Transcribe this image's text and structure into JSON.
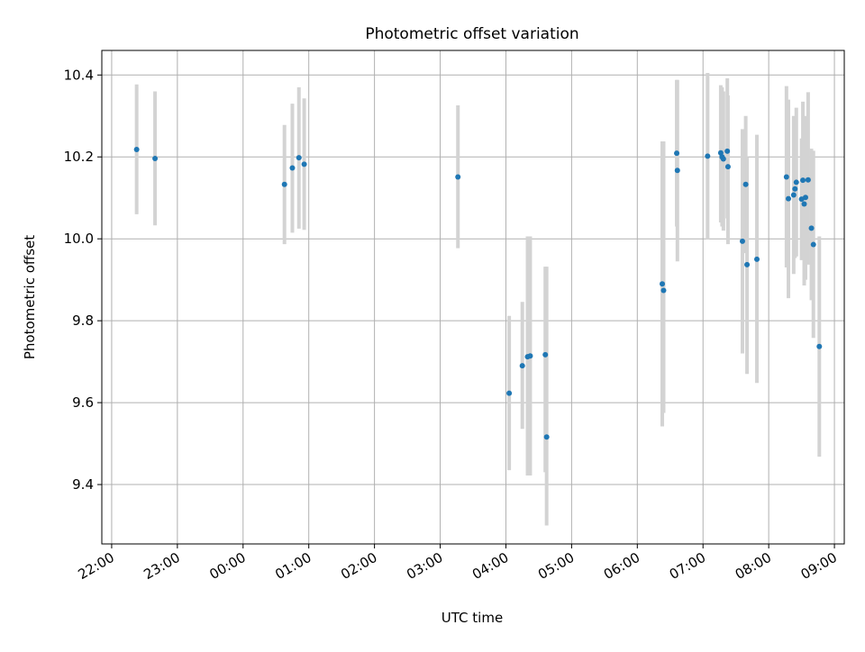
{
  "chart_data": {
    "type": "scatter",
    "title": "Photometric offset variation",
    "xlabel": "UTC time",
    "ylabel": "Photometric offset",
    "x_unit": "hours since 22:00 UTC",
    "xlim": [
      -0.15,
      11.15
    ],
    "ylim": [
      9.255,
      10.46
    ],
    "xticks": [
      {
        "label": "22:00",
        "value": 0
      },
      {
        "label": "23:00",
        "value": 1
      },
      {
        "label": "00:00",
        "value": 2
      },
      {
        "label": "01:00",
        "value": 3
      },
      {
        "label": "02:00",
        "value": 4
      },
      {
        "label": "03:00",
        "value": 5
      },
      {
        "label": "04:00",
        "value": 6
      },
      {
        "label": "05:00",
        "value": 7
      },
      {
        "label": "06:00",
        "value": 8
      },
      {
        "label": "07:00",
        "value": 9
      },
      {
        "label": "08:00",
        "value": 10
      },
      {
        "label": "09:00",
        "value": 11
      }
    ],
    "yticks": [
      {
        "label": "9.4",
        "value": 9.4
      },
      {
        "label": "9.6",
        "value": 9.6
      },
      {
        "label": "9.8",
        "value": 9.8
      },
      {
        "label": "10.0",
        "value": 10.0
      },
      {
        "label": "10.2",
        "value": 10.2
      },
      {
        "label": "10.4",
        "value": 10.4
      }
    ],
    "grid": true,
    "colors": {
      "points": "#1f77b4",
      "errorbars": "#d3d3d3",
      "grid": "#b0b0b0"
    },
    "series": [
      {
        "points": [
          {
            "x": 0.38,
            "y": 10.218,
            "lo": 10.06,
            "hi": 10.377
          },
          {
            "x": 0.66,
            "y": 10.196,
            "lo": 10.033,
            "hi": 10.36
          },
          {
            "x": 2.63,
            "y": 10.133,
            "lo": 9.987,
            "hi": 10.278
          },
          {
            "x": 2.75,
            "y": 10.173,
            "lo": 10.015,
            "hi": 10.33
          },
          {
            "x": 2.85,
            "y": 10.198,
            "lo": 10.025,
            "hi": 10.37
          },
          {
            "x": 2.93,
            "y": 10.182,
            "lo": 10.022,
            "hi": 10.343
          },
          {
            "x": 5.27,
            "y": 10.151,
            "lo": 9.977,
            "hi": 10.326
          },
          {
            "x": 6.05,
            "y": 9.623,
            "lo": 9.435,
            "hi": 9.812
          },
          {
            "x": 6.25,
            "y": 9.69,
            "lo": 9.536,
            "hi": 9.846
          },
          {
            "x": 6.33,
            "y": 9.712,
            "lo": 9.422,
            "hi": 10.006
          },
          {
            "x": 6.37,
            "y": 9.714,
            "lo": 9.422,
            "hi": 10.006
          },
          {
            "x": 6.6,
            "y": 9.717,
            "lo": 9.43,
            "hi": 9.932
          },
          {
            "x": 6.62,
            "y": 9.516,
            "lo": 9.3,
            "hi": 9.932
          },
          {
            "x": 8.38,
            "y": 9.89,
            "lo": 9.542,
            "hi": 10.238
          },
          {
            "x": 8.4,
            "y": 9.874,
            "lo": 9.575,
            "hi": 10.238
          },
          {
            "x": 8.6,
            "y": 10.209,
            "lo": 10.03,
            "hi": 10.388
          },
          {
            "x": 8.61,
            "y": 10.167,
            "lo": 9.945,
            "hi": 10.388
          },
          {
            "x": 9.07,
            "y": 10.202,
            "lo": 9.998,
            "hi": 10.405
          },
          {
            "x": 9.27,
            "y": 10.21,
            "lo": 10.04,
            "hi": 10.375
          },
          {
            "x": 9.29,
            "y": 10.2,
            "lo": 10.03,
            "hi": 10.37
          },
          {
            "x": 9.31,
            "y": 10.195,
            "lo": 10.02,
            "hi": 10.36
          },
          {
            "x": 9.37,
            "y": 10.214,
            "lo": 10.05,
            "hi": 10.392
          },
          {
            "x": 9.38,
            "y": 10.176,
            "lo": 9.987,
            "hi": 10.35
          },
          {
            "x": 9.6,
            "y": 9.994,
            "lo": 9.72,
            "hi": 10.268
          },
          {
            "x": 9.65,
            "y": 10.133,
            "lo": 9.965,
            "hi": 10.3
          },
          {
            "x": 9.67,
            "y": 9.937,
            "lo": 9.67,
            "hi": 10.2
          },
          {
            "x": 9.82,
            "y": 9.95,
            "lo": 9.648,
            "hi": 10.254
          },
          {
            "x": 10.27,
            "y": 10.151,
            "lo": 9.93,
            "hi": 10.373
          },
          {
            "x": 10.3,
            "y": 10.098,
            "lo": 9.855,
            "hi": 10.34
          },
          {
            "x": 10.38,
            "y": 10.107,
            "lo": 9.914,
            "hi": 10.3
          },
          {
            "x": 10.4,
            "y": 10.122,
            "lo": 9.953,
            "hi": 10.29
          },
          {
            "x": 10.42,
            "y": 10.138,
            "lo": 9.957,
            "hi": 10.32
          },
          {
            "x": 10.5,
            "y": 10.097,
            "lo": 9.948,
            "hi": 10.245
          },
          {
            "x": 10.52,
            "y": 10.143,
            "lo": 9.96,
            "hi": 10.335
          },
          {
            "x": 10.54,
            "y": 10.085,
            "lo": 9.886,
            "hi": 10.284
          },
          {
            "x": 10.56,
            "y": 10.101,
            "lo": 9.9,
            "hi": 10.3
          },
          {
            "x": 10.6,
            "y": 10.144,
            "lo": 9.937,
            "hi": 10.358
          },
          {
            "x": 10.65,
            "y": 10.026,
            "lo": 9.85,
            "hi": 10.22
          },
          {
            "x": 10.68,
            "y": 9.986,
            "lo": 9.758,
            "hi": 10.215
          },
          {
            "x": 10.77,
            "y": 9.737,
            "lo": 9.468,
            "hi": 10.006
          }
        ]
      }
    ]
  }
}
